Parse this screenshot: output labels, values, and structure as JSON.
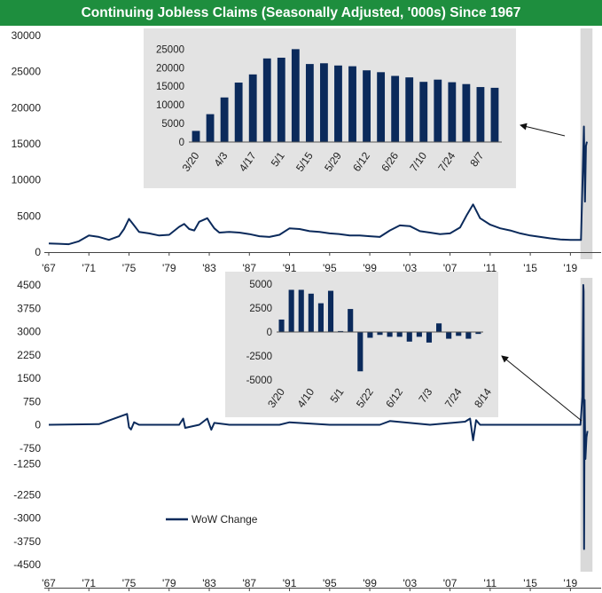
{
  "title": "Continuing Jobless Claims (Seasonally Adjusted, '000s) Since 1967",
  "colors": {
    "title_bg": "#1e8e3e",
    "series": "#0b2a5b",
    "inset_bg": "#e3e3e3",
    "highlight_bg": "#d9d9d9"
  },
  "chart_data": [
    {
      "id": "top",
      "type": "line",
      "title": "Continuing Jobless Claims (Seasonally Adjusted, '000s)",
      "ylim": [
        0,
        30000
      ],
      "yticks": [
        0,
        5000,
        10000,
        15000,
        20000,
        25000,
        30000
      ],
      "xlim": [
        1967,
        2021
      ],
      "xticks": [
        "'67",
        "'71",
        "'75",
        "'79",
        "'83",
        "'87",
        "'91",
        "'95",
        "'99",
        "'03",
        "'07",
        "'11",
        "'15",
        "'19"
      ],
      "x": [
        1967,
        1968,
        1969,
        1970,
        1971,
        1972,
        1973,
        1974,
        1974.5,
        1975,
        1975.5,
        1976,
        1977,
        1978,
        1979,
        1980,
        1980.5,
        1981,
        1981.5,
        1982,
        1982.8,
        1983.5,
        1984,
        1985,
        1986,
        1987,
        1988,
        1989,
        1990,
        1991,
        1992,
        1993,
        1994,
        1995,
        1996,
        1997,
        1998,
        1999,
        2000,
        2001,
        2002,
        2003,
        2004,
        2005,
        2006,
        2007,
        2008,
        2008.7,
        2009.3,
        2010,
        2011,
        2012,
        2013,
        2014,
        2015,
        2016,
        2017,
        2018,
        2019,
        2020.05,
        2020.25,
        2020.35,
        2020.45,
        2020.55,
        2020.65
      ],
      "y": [
        1200,
        1150,
        1100,
        1500,
        2300,
        2100,
        1700,
        2200,
        3200,
        4600,
        3700,
        2800,
        2600,
        2300,
        2400,
        3500,
        3900,
        3200,
        3000,
        4200,
        4700,
        3300,
        2700,
        2800,
        2700,
        2500,
        2200,
        2100,
        2400,
        3300,
        3200,
        2900,
        2800,
        2600,
        2500,
        2300,
        2300,
        2200,
        2100,
        3000,
        3700,
        3600,
        2900,
        2700,
        2500,
        2600,
        3400,
        5200,
        6600,
        4700,
        3800,
        3300,
        3000,
        2600,
        2300,
        2100,
        1900,
        1750,
        1700,
        1700,
        12000,
        17400,
        7000,
        14700,
        15300
      ],
      "highlight": {
        "x0": 2020.0,
        "x1": 2021.2
      },
      "inset": {
        "type": "bar",
        "ylim": [
          0,
          27000
        ],
        "yticks": [
          0,
          5000,
          10000,
          15000,
          20000,
          25000
        ],
        "tick_labels": [
          "3/20",
          "4/3",
          "4/17",
          "5/1",
          "5/15",
          "5/29",
          "6/12",
          "6/26",
          "7/10",
          "7/24",
          "8/7"
        ],
        "tick_every": 2,
        "values": [
          3000,
          7500,
          12000,
          16000,
          18200,
          22500,
          22700,
          25000,
          21000,
          21200,
          20600,
          20400,
          19300,
          18800,
          17800,
          17400,
          16200,
          16800,
          16100,
          15600,
          14800,
          14600
        ]
      }
    },
    {
      "id": "bottom",
      "type": "line",
      "ylim": [
        -4500,
        4500
      ],
      "yticks": [
        4500,
        3750,
        3000,
        2250,
        1500,
        750,
        0,
        -750,
        -1250,
        -2250,
        -3000,
        -3750,
        -4500
      ],
      "xlim": [
        1967,
        2021
      ],
      "xticks": [
        "'67",
        "'71",
        "'75",
        "'79",
        "'83",
        "'87",
        "'91",
        "'95",
        "'99",
        "'03",
        "'07",
        "'11",
        "'15",
        "'19"
      ],
      "legend": "WoW Change",
      "legend_position": "bottom-left",
      "x": [
        1967,
        1972,
        1974.8,
        1975.0,
        1975.2,
        1975.5,
        1976,
        1980,
        1980.4,
        1980.6,
        1982,
        1982.8,
        1983.2,
        1983.5,
        1985,
        1990,
        1991,
        1995,
        2000,
        2001,
        2005,
        2008.5,
        2009.0,
        2009.3,
        2009.6,
        2010,
        2015,
        2020.0,
        2020.2,
        2020.28,
        2020.32,
        2020.36,
        2020.42,
        2020.5,
        2020.6,
        2020.7
      ],
      "y": [
        0,
        20,
        350,
        -80,
        -150,
        80,
        0,
        0,
        200,
        -100,
        0,
        200,
        -160,
        60,
        0,
        0,
        80,
        0,
        0,
        120,
        0,
        100,
        200,
        -500,
        150,
        0,
        0,
        0,
        900,
        4500,
        4300,
        -4000,
        800,
        -1100,
        -400,
        -200
      ],
      "highlight": {
        "x0": 2020.0,
        "x1": 2021.2
      },
      "inset": {
        "type": "bar",
        "ylim": [
          -5000,
          5000
        ],
        "yticks": [
          5000,
          2500,
          0,
          -2500,
          -5000
        ],
        "tick_labels": [
          "3/20",
          "4/10",
          "5/1",
          "5/22",
          "6/12",
          "7/3",
          "7/24",
          "8/14"
        ],
        "tick_every": 3,
        "values": [
          1300,
          4400,
          4400,
          4000,
          3000,
          4300,
          100,
          2400,
          -4100,
          -600,
          -300,
          -500,
          -500,
          -1000,
          -500,
          -1100,
          900,
          -700,
          -400,
          -700,
          -200
        ]
      }
    }
  ]
}
